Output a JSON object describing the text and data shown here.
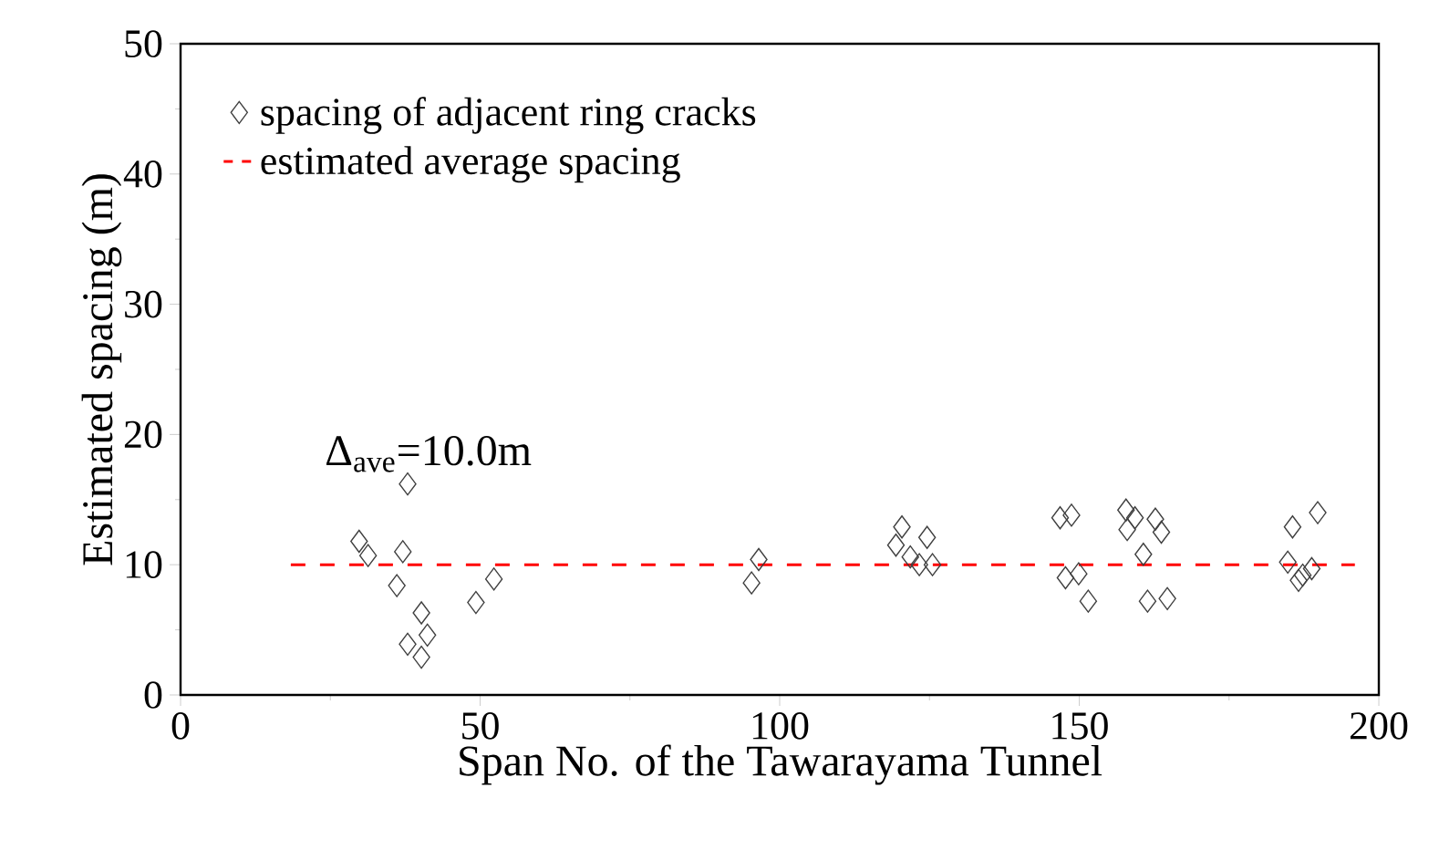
{
  "chart_data": {
    "type": "scatter",
    "xlabel": "Span No. of the Tawarayama Tunnel",
    "ylabel": "Estimated spacing (m)",
    "xlim": [
      0,
      200
    ],
    "xticks": [
      0,
      50,
      100,
      150,
      200
    ],
    "ylim": [
      0,
      50
    ],
    "yticks": [
      0,
      10,
      20,
      30,
      40,
      50
    ],
    "legend": "top left",
    "grid": false,
    "annotations": [
      "Δ$_{ave}$=10.0m"
    ],
    "series": [
      {
        "name": "spacing of adjacent ring cracks",
        "marker": "diamond",
        "color": "#404040",
        "x": [
          37.9,
          29.8,
          31.3,
          37.1,
          36.1,
          40.2,
          41.2,
          37.9,
          40.2,
          49.3,
          52.3,
          96.5,
          95.3,
          120.4,
          119.4,
          124.6,
          121.8,
          123.3,
          125.5,
          146.8,
          148.7,
          147.7,
          149.9,
          151.5,
          157.8,
          159.3,
          158.0,
          162.7,
          163.7,
          160.7,
          161.4,
          164.7,
          185.6,
          189.8,
          184.8,
          188.8,
          186.6,
          187.3
        ],
        "values": [
          16.2,
          11.8,
          10.7,
          11.0,
          8.4,
          6.3,
          4.6,
          3.9,
          2.9,
          7.1,
          8.9,
          10.4,
          8.6,
          12.9,
          11.5,
          12.1,
          10.6,
          10.0,
          10.0,
          13.6,
          13.8,
          9.0,
          9.3,
          7.2,
          14.2,
          13.6,
          12.7,
          13.5,
          12.5,
          10.8,
          7.2,
          7.4,
          12.9,
          14.0,
          10.2,
          9.7,
          8.8,
          9.2
        ]
      },
      {
        "name": "estimated average spacing",
        "type": "line",
        "line_style": "dashed",
        "marker": "none",
        "color": "#ff0000",
        "x": [
          18.4,
          196
        ],
        "values": [
          10,
          10
        ]
      }
    ]
  }
}
